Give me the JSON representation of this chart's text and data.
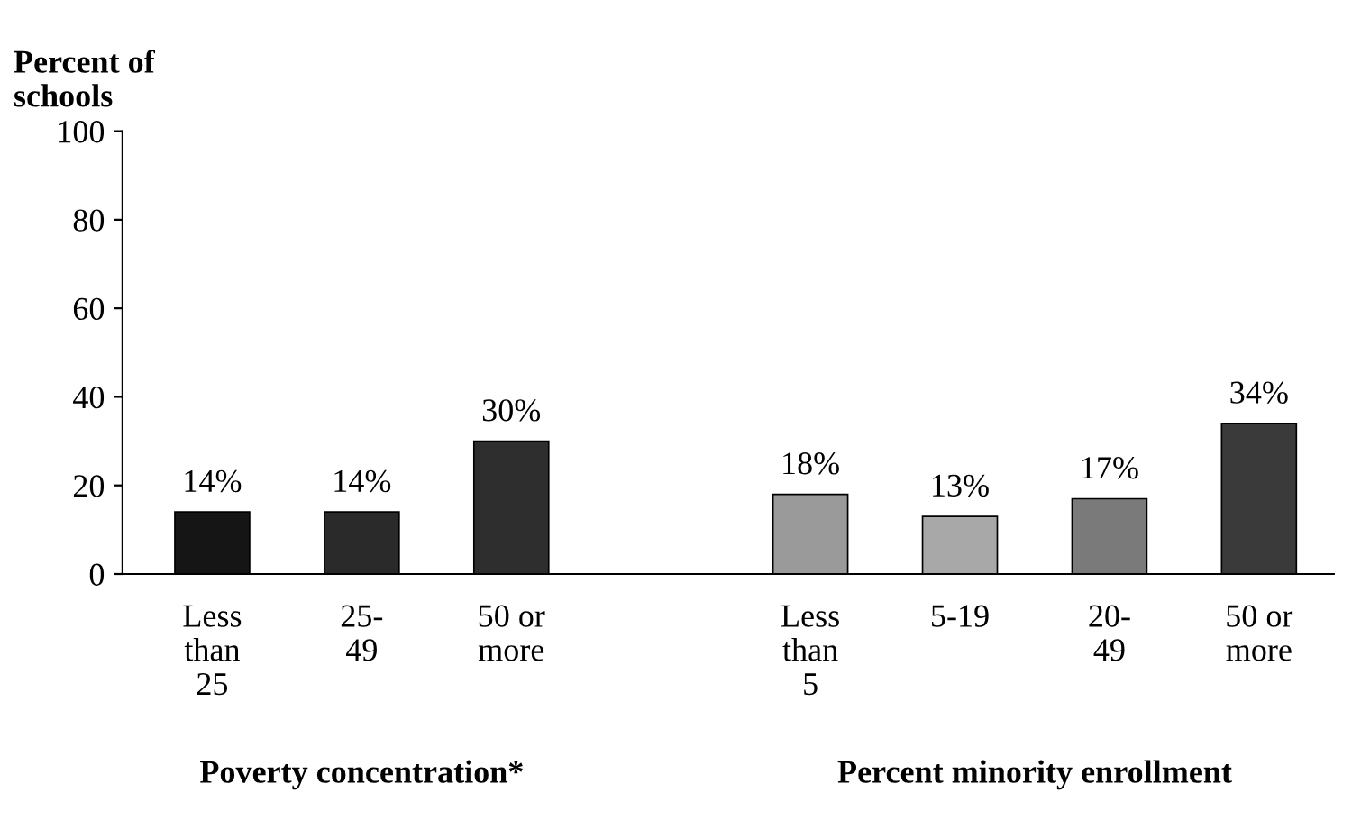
{
  "chart_data": {
    "type": "bar",
    "ylabel": "Percent of\nschools",
    "categories": [
      "Less\nthan\n25",
      "25-\n49",
      "50 or\nmore",
      null,
      "Less\nthan\n5",
      "5-19",
      "20-\n49",
      "50 or\nmore"
    ],
    "values": [
      14,
      14,
      30,
      null,
      18,
      13,
      17,
      34
    ],
    "value_labels": [
      "14%",
      "14%",
      "30%",
      null,
      "18%",
      "13%",
      "17%",
      "34%"
    ],
    "colors": [
      "#151515",
      "#2a2a2a",
      "#2e2e2e",
      "#ffffff",
      "#9a9a9a",
      "#a8a8a8",
      "#7a7a7a",
      "#3a3a3a"
    ],
    "ylim": [
      0,
      100
    ],
    "yticks": [
      0,
      20,
      40,
      60,
      80,
      100
    ],
    "grid": false,
    "legend": false,
    "annotations": [
      "Poverty concentration*",
      "Percent minority enrollment"
    ]
  }
}
